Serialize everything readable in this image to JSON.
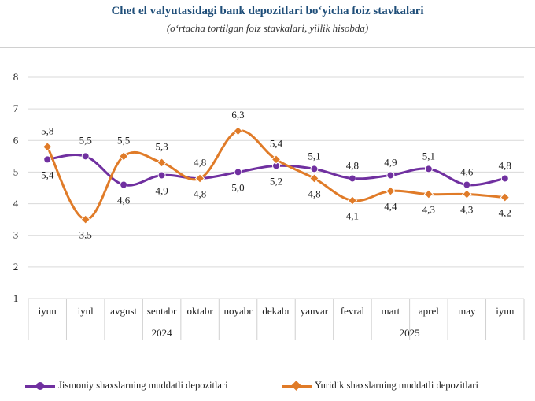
{
  "chart_data": {
    "type": "line",
    "title": "Chet el valyutasidagi bank depozitlari bo‘yicha foiz stavkalari",
    "subtitle": "(o‘rtacha tortilgan foiz stavkalari, yillik hisobda)",
    "categories": [
      "iyun",
      "iyul",
      "avgust",
      "sentabr",
      "oktabr",
      "noyabr",
      "dekabr",
      "yanvar",
      "fevral",
      "mart",
      "aprel",
      "may",
      "iyun"
    ],
    "groups": [
      {
        "label": "2024",
        "span": [
          0,
          6
        ]
      },
      {
        "label": "2025",
        "span": [
          7,
          12
        ]
      }
    ],
    "ylim": [
      1,
      8
    ],
    "yticks": [
      1,
      2,
      3,
      4,
      5,
      6,
      7,
      8
    ],
    "grid": true,
    "legend_position": "bottom",
    "series": [
      {
        "name": "Jismoniy shaxslarning muddatli depozitlari",
        "color": "#7030a0",
        "marker": "circle",
        "values": [
          5.4,
          5.5,
          4.6,
          4.9,
          4.8,
          5.0,
          5.2,
          5.1,
          4.8,
          4.9,
          5.1,
          4.6,
          4.8
        ],
        "labels": [
          "5,4",
          "5,5",
          "4,6",
          "4,9",
          "4,8",
          "5,0",
          "5,2",
          "5,1",
          "4,8",
          "4,9",
          "5,1",
          "4,6",
          "4,8"
        ]
      },
      {
        "name": "Yuridik shaxslarning muddatli depozitlari",
        "color": "#e07b28",
        "marker": "diamond",
        "values": [
          5.8,
          3.5,
          5.5,
          5.3,
          4.8,
          6.3,
          5.4,
          4.8,
          4.1,
          4.4,
          4.3,
          4.3,
          4.2
        ],
        "labels": [
          "5,8",
          "3,5",
          "5,5",
          "5,3",
          "4,8",
          "6,3",
          "5,4",
          "4,8",
          "4,1",
          "4,4",
          "4,3",
          "4,3",
          "4,2"
        ]
      }
    ]
  }
}
